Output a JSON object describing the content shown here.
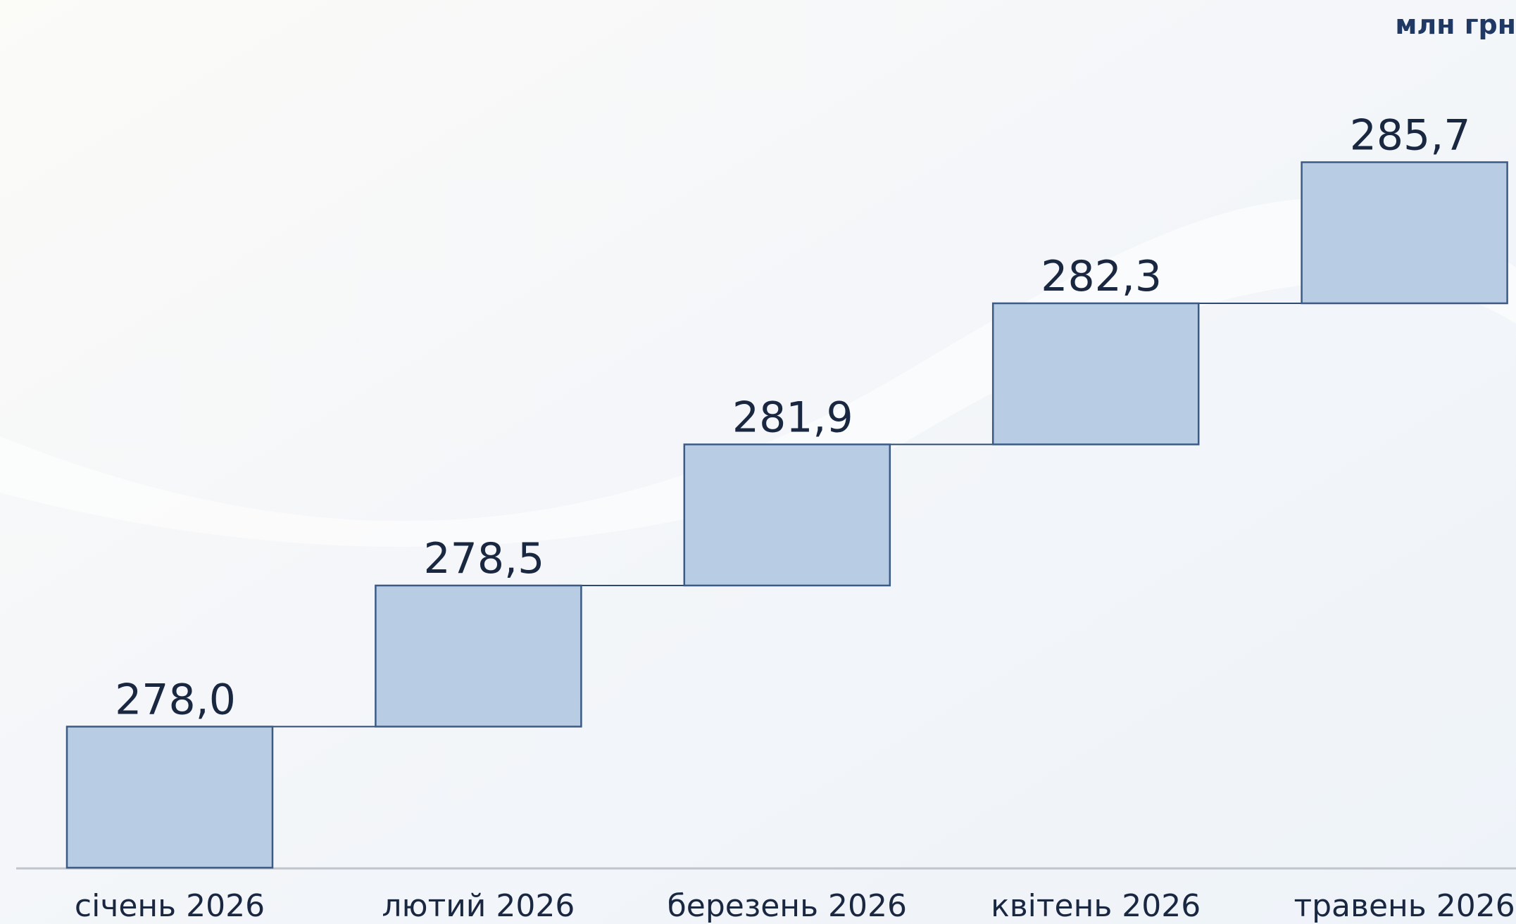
{
  "chart_data": {
    "type": "step",
    "unit": "млн грн",
    "categories": [
      "січень 2026",
      "лютий 2026",
      "березень 2026",
      "квітень 2026",
      "травень 2026"
    ],
    "values": [
      278.0,
      278.5,
      281.9,
      282.3,
      285.7
    ],
    "value_labels": [
      "278,0",
      "278,5",
      "281,9",
      "282,3",
      "285,7"
    ],
    "color": "#b8cce4"
  }
}
